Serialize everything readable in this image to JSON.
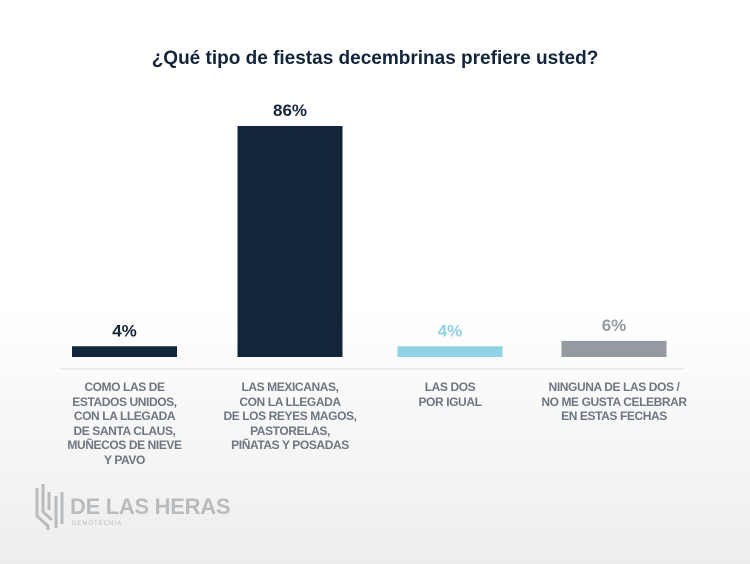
{
  "chart_data": {
    "type": "bar",
    "title": "¿Qué tipo de fiestas decembrinas prefiere usted?",
    "categories": [
      "COMO LAS DE\nESTADOS UNIDOS,\nCON LA LLEGADA\nDE SANTA CLAUS,\nMUÑECOS DE NIEVE\nY PAVO",
      "LAS MEXICANAS,\nCON LA LLEGADA\nDE LOS REYES MAGOS,\nPASTORELAS,\nPIÑATAS Y POSADAS",
      "LAS DOS\nPOR IGUAL",
      "NINGUNA DE LAS DOS /\nNO ME GUSTA CELEBRAR\nEN ESTAS FECHAS"
    ],
    "values": [
      4,
      86,
      4,
      6
    ],
    "data_labels": [
      "4%",
      "86%",
      "4%",
      "6%"
    ],
    "colors": [
      "#13253a",
      "#13253a",
      "#8fd3e4",
      "#959aa0"
    ],
    "label_colors": [
      "#13253a",
      "#13253a",
      "#8fd3e4",
      "#959aa0"
    ],
    "ylim": [
      0,
      86
    ],
    "grid": false,
    "xlabel": "",
    "ylabel": ""
  },
  "logo": {
    "name": "DE LAS HERAS",
    "sub": "DEMOTECNIA"
  }
}
